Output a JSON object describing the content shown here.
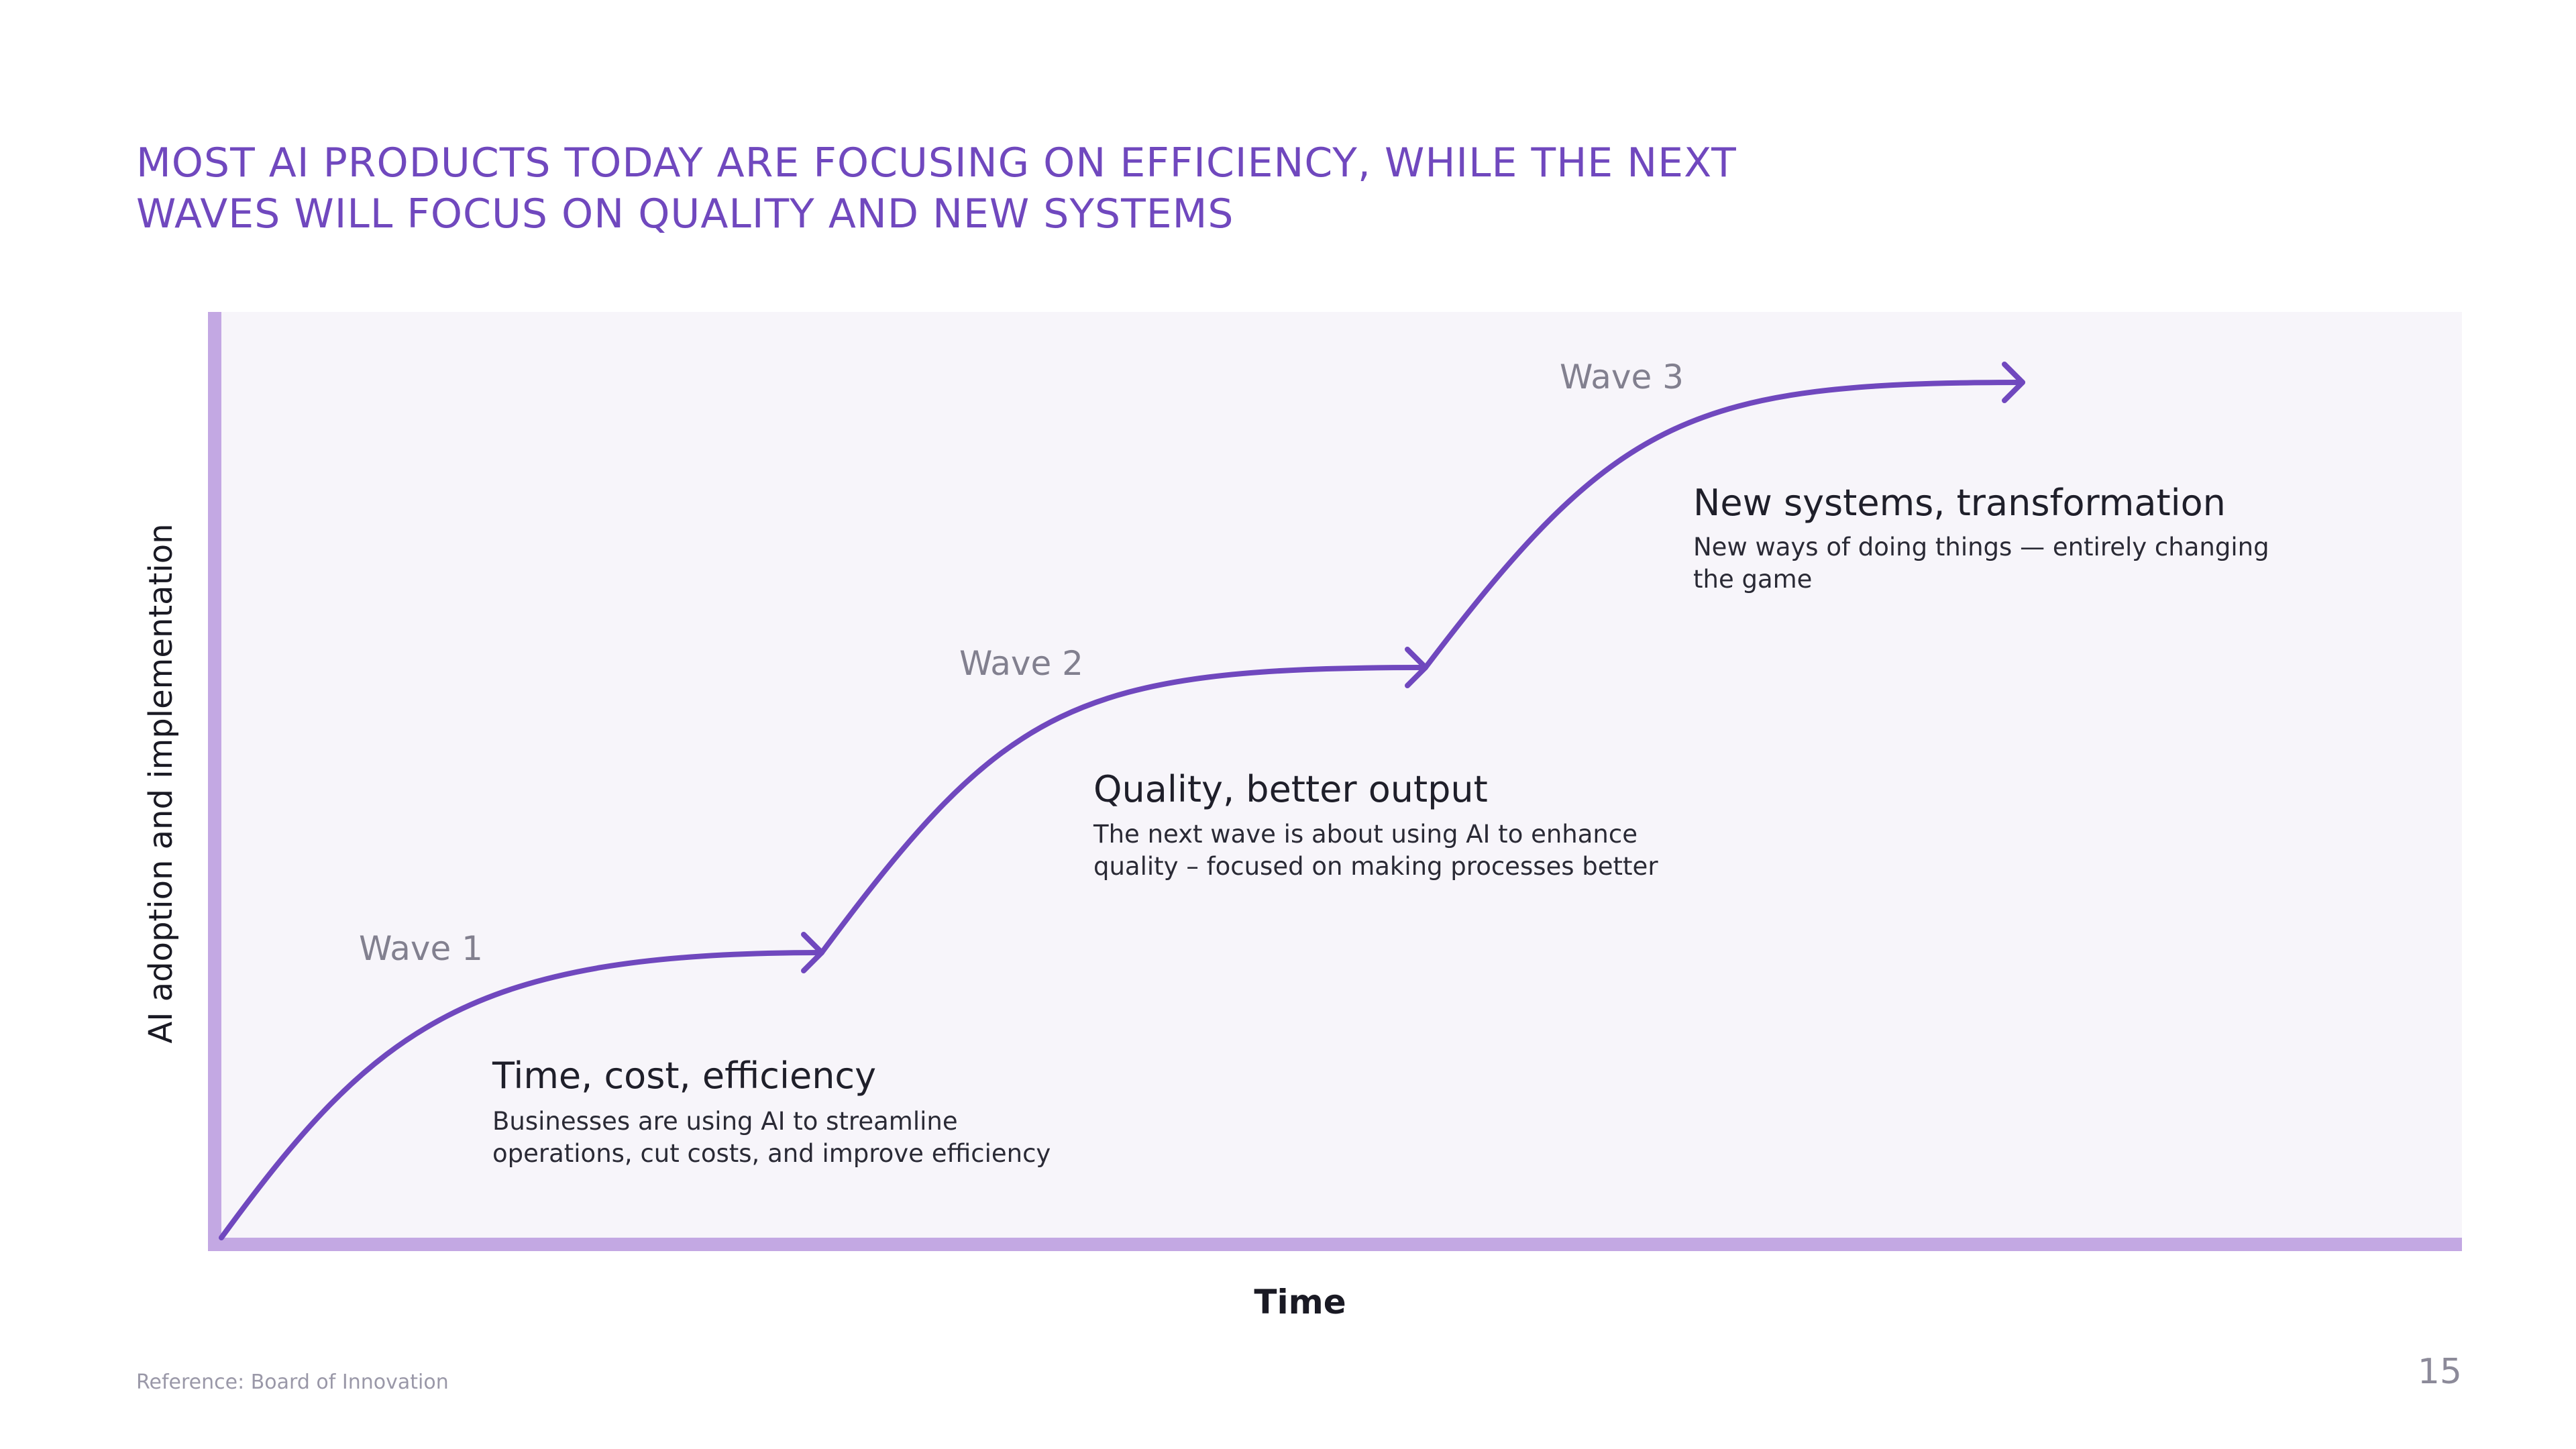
{
  "title_lines": [
    "MOST AI PRODUCTS TODAY ARE FOCUSING ON  EFFICIENCY, WHILE THE NEXT",
    "WAVES WILL FOCUS ON QUALITY AND NEW SYSTEMS"
  ],
  "axes": {
    "y_label": "AI adoption and implementation",
    "x_label": "Time"
  },
  "waves": [
    {
      "label": "Wave 1",
      "heading": "Time, cost, efficiency",
      "description": "Businesses are using AI to streamline operations, cut costs, and improve efficiency"
    },
    {
      "label": "Wave 2",
      "heading": "Quality, better output",
      "description": "The next wave is about using AI to enhance quality – focused on making processes better"
    },
    {
      "label": "Wave 3",
      "heading": "New systems, transformation",
      "description": "New ways of doing things — entirely changing the game"
    }
  ],
  "footer": {
    "reference": "Reference: Board of Innovation",
    "page_number": "15"
  },
  "colors": {
    "accent": "#7048be",
    "axis": "#c3a8e3",
    "plot_background": "#f7f5fa"
  }
}
